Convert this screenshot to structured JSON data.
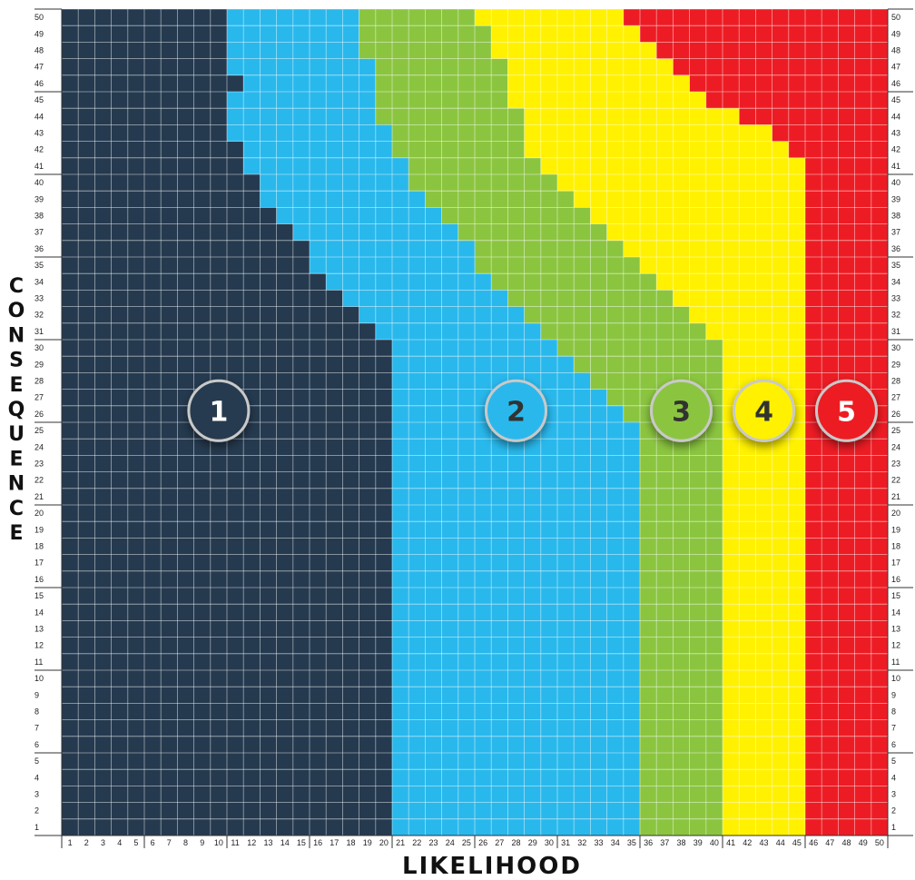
{
  "chart_data": {
    "type": "heatmap",
    "title": "",
    "xlabel": "LIKELIHOOD",
    "ylabel": "CONSEQUENCE",
    "xlim": [
      1,
      50
    ],
    "ylim": [
      1,
      50
    ],
    "grid": true,
    "levels": [
      {
        "label": "1",
        "color": "#253a4f",
        "badge_text": "#ffffff"
      },
      {
        "label": "2",
        "color": "#29b8ec",
        "badge_text": "#333333"
      },
      {
        "label": "3",
        "color": "#8bc540",
        "badge_text": "#333333"
      },
      {
        "label": "4",
        "color": "#fff100",
        "badge_text": "#333333"
      },
      {
        "label": "5",
        "color": "#ed1c24",
        "badge_text": "#ffffff"
      }
    ],
    "boundaries": {
      "1": [
        20,
        20,
        20,
        20,
        20,
        20,
        20,
        20,
        20,
        20,
        20,
        20,
        20,
        20,
        20,
        20,
        20,
        20,
        20,
        20,
        20,
        20,
        20,
        20,
        20,
        20,
        20,
        20,
        20,
        20,
        19,
        18,
        17,
        16,
        15,
        15,
        14,
        13,
        12,
        12,
        11,
        11,
        10,
        10,
        10,
        11,
        10,
        10,
        10,
        10
      ],
      "2": [
        35,
        35,
        35,
        35,
        35,
        35,
        35,
        35,
        35,
        35,
        35,
        35,
        35,
        35,
        35,
        35,
        35,
        35,
        35,
        35,
        35,
        35,
        35,
        35,
        35,
        34,
        33,
        32,
        31,
        30,
        29,
        28,
        27,
        26,
        25,
        25,
        24,
        23,
        22,
        21,
        21,
        20,
        20,
        19,
        19,
        19,
        19,
        18,
        18,
        18
      ],
      "3": [
        40,
        40,
        40,
        40,
        40,
        40,
        40,
        40,
        40,
        40,
        40,
        40,
        40,
        40,
        40,
        40,
        40,
        40,
        40,
        40,
        40,
        40,
        40,
        40,
        40,
        40,
        40,
        40,
        40,
        40,
        39,
        38,
        37,
        36,
        35,
        34,
        33,
        32,
        31,
        30,
        29,
        28,
        28,
        28,
        27,
        27,
        27,
        26,
        26,
        25
      ],
      "4": [
        45,
        45,
        45,
        45,
        45,
        45,
        45,
        45,
        45,
        45,
        45,
        45,
        45,
        45,
        45,
        45,
        45,
        45,
        45,
        45,
        45,
        45,
        45,
        45,
        45,
        45,
        45,
        45,
        45,
        45,
        45,
        45,
        45,
        45,
        45,
        45,
        45,
        45,
        45,
        45,
        45,
        44,
        43,
        41,
        39,
        38,
        37,
        36,
        35,
        34
      ]
    },
    "x_ticks": [
      1,
      2,
      3,
      4,
      5,
      6,
      7,
      8,
      9,
      10,
      11,
      12,
      13,
      14,
      15,
      16,
      17,
      18,
      19,
      20,
      21,
      22,
      23,
      24,
      25,
      26,
      27,
      28,
      29,
      30,
      31,
      32,
      33,
      34,
      35,
      36,
      37,
      38,
      39,
      40,
      41,
      42,
      43,
      44,
      45,
      46,
      47,
      48,
      49,
      50
    ],
    "y_ticks": [
      1,
      2,
      3,
      4,
      5,
      6,
      7,
      8,
      9,
      10,
      11,
      12,
      13,
      14,
      15,
      16,
      17,
      18,
      19,
      20,
      21,
      22,
      23,
      24,
      25,
      26,
      27,
      28,
      29,
      30,
      31,
      32,
      33,
      34,
      35,
      36,
      37,
      38,
      39,
      40,
      41,
      42,
      43,
      44,
      45,
      46,
      47,
      48,
      49,
      50
    ],
    "badge_positions": [
      {
        "label": "1",
        "x": 10,
        "y": 26
      },
      {
        "label": "2",
        "x": 28,
        "y": 26
      },
      {
        "label": "3",
        "x": 38,
        "y": 26
      },
      {
        "label": "4",
        "x": 43,
        "y": 26
      },
      {
        "label": "5",
        "x": 48,
        "y": 26
      }
    ]
  }
}
